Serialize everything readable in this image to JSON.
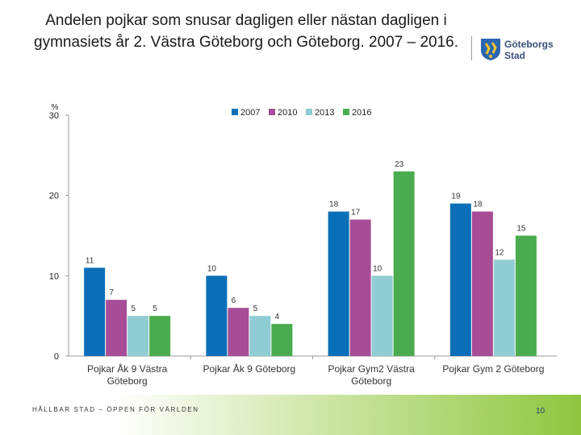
{
  "header": {
    "title": "Andelen pojkar som snusar dagligen eller nästan dagligen i gymnasiets år 2. Västra Göteborg och Göteborg. 2007 – 2016.",
    "logo_text_line1": "Göteborgs",
    "logo_text_line2": "Stad"
  },
  "chart_data": {
    "type": "bar",
    "title": "",
    "ylabel": "%",
    "ylim": [
      0,
      30
    ],
    "yticks": [
      0,
      10,
      20,
      30
    ],
    "categories": [
      "Pojkar Åk 9 Västra Göteborg",
      "Pojkar Åk 9 Göteborg",
      "Pojkar Gym2 Västra Göteborg",
      "Pojkar Gym 2 Göteborg"
    ],
    "series": [
      {
        "name": "2007",
        "color": "#0a6fb8",
        "values": [
          11,
          10,
          18,
          19
        ]
      },
      {
        "name": "2010",
        "color": "#a64d95",
        "values": [
          7,
          6,
          17,
          18
        ]
      },
      {
        "name": "2013",
        "color": "#8fcdd4",
        "values": [
          5,
          5,
          10,
          12
        ]
      },
      {
        "name": "2016",
        "color": "#4aac4e",
        "values": [
          5,
          4,
          23,
          15
        ]
      }
    ],
    "legend_position": "top"
  },
  "footer": {
    "text": "HÅLLBAR STAD – ÖPPEN FÖR VÄRLDEN",
    "page_number": "10"
  }
}
